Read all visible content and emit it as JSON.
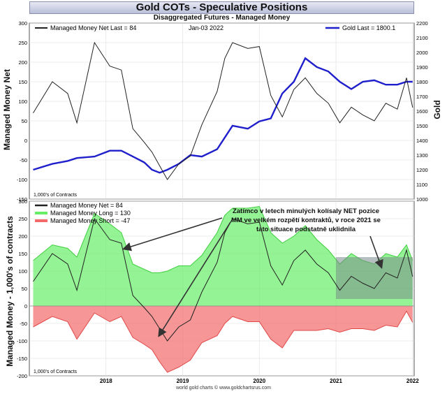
{
  "header": {
    "title": "Gold COTs - Speculative Positions",
    "subtitle": "Disaggregated Futures - Managed Money"
  },
  "top_panel": {
    "legend_left": "Managed Money Net   Last = 84",
    "date": "Jan-03  2022",
    "legend_right": "Gold Last = 1800.1",
    "ylabel_left": "Managed Money Net",
    "ylabel_right": "Gold",
    "units_note": "1,000's of Contracts"
  },
  "bottom_panel": {
    "legend": [
      {
        "label": "Managed Money Net   = 84",
        "color": "#000000"
      },
      {
        "label": "Managed Money Long  = 130",
        "color": "#44dd44"
      },
      {
        "label": "Managed Money Short = -47",
        "color": "#ee4444"
      }
    ],
    "ylabel": "Managed Money - 1,000's of contracts",
    "units_note": "1,000's of Contracts",
    "annotation": {
      "line1": "Zatímco v letech minulých kolísaly NET pozice",
      "line2": "MM ve velkém rozpětí kontraktů, v roce 2021 se",
      "line3": "tato situace podstatně uklidnila"
    }
  },
  "footer": "world gold charts © www.goldchartsrus.com",
  "colors": {
    "net": "#222222",
    "gold": "#1f1fcc",
    "long": "#66ee66",
    "short": "#f46a6a",
    "highlight": "#7a8a8a"
  },
  "chart_data": [
    {
      "type": "line",
      "title": "Gold COTs - Speculative Positions",
      "subtitle": "Disaggregated Futures - Managed Money",
      "xlabel": "",
      "ylabel": "Managed Money Net",
      "y2label": "Gold",
      "ylim": [
        -150,
        300
      ],
      "y2lim": [
        1000,
        2200
      ],
      "yticks": [
        -150,
        -100,
        -50,
        0,
        50,
        100,
        150,
        200,
        250,
        300
      ],
      "y2ticks": [
        1000,
        1100,
        1200,
        1300,
        1400,
        1500,
        1600,
        1700,
        1800,
        1900,
        2000,
        2100,
        2200
      ],
      "x": [
        2017.05,
        2017.3,
        2017.5,
        2017.62,
        2017.85,
        2018.05,
        2018.2,
        2018.35,
        2018.5,
        2018.6,
        2018.7,
        2018.8,
        2018.95,
        2019.1,
        2019.25,
        2019.45,
        2019.55,
        2019.65,
        2019.85,
        2020.0,
        2020.15,
        2020.3,
        2020.45,
        2020.6,
        2020.75,
        2020.9,
        2021.05,
        2021.2,
        2021.35,
        2021.5,
        2021.65,
        2021.8,
        2021.92,
        2022.0
      ],
      "series": [
        {
          "name": "Managed Money Net",
          "axis": "left",
          "values": [
            70,
            150,
            120,
            45,
            250,
            190,
            180,
            30,
            -5,
            -30,
            -65,
            -100,
            -60,
            -40,
            40,
            125,
            210,
            250,
            235,
            240,
            115,
            60,
            130,
            160,
            120,
            95,
            45,
            85,
            65,
            50,
            95,
            80,
            160,
            84
          ]
        },
        {
          "name": "Gold",
          "axis": "right",
          "values": [
            1200,
            1240,
            1260,
            1280,
            1290,
            1330,
            1330,
            1290,
            1250,
            1200,
            1180,
            1200,
            1240,
            1300,
            1290,
            1340,
            1420,
            1500,
            1480,
            1530,
            1550,
            1720,
            1800,
            1960,
            1900,
            1870,
            1800,
            1750,
            1800,
            1810,
            1780,
            1780,
            1800,
            1800.1
          ]
        }
      ],
      "legend": [
        "Managed Money Net Last = 84",
        "Gold Last = 1800.1"
      ]
    },
    {
      "type": "area",
      "ylabel": "Managed Money - 1,000's of contracts",
      "ylim": [
        -200,
        300
      ],
      "yticks": [
        -200,
        -150,
        -100,
        -50,
        0,
        50,
        100,
        150,
        200,
        250,
        300
      ],
      "xticks": [
        "2018",
        "2019",
        "2020",
        "2021",
        "2022"
      ],
      "x": [
        2017.05,
        2017.3,
        2017.5,
        2017.62,
        2017.85,
        2018.05,
        2018.2,
        2018.35,
        2018.5,
        2018.6,
        2018.7,
        2018.8,
        2018.95,
        2019.1,
        2019.25,
        2019.45,
        2019.55,
        2019.65,
        2019.85,
        2020.0,
        2020.15,
        2020.3,
        2020.45,
        2020.6,
        2020.75,
        2020.9,
        2021.05,
        2021.2,
        2021.35,
        2021.5,
        2021.65,
        2021.8,
        2021.92,
        2022.0
      ],
      "series": [
        {
          "name": "Managed Money Net",
          "values": [
            70,
            150,
            120,
            45,
            250,
            190,
            180,
            30,
            -5,
            -30,
            -65,
            -100,
            -60,
            -40,
            40,
            125,
            210,
            250,
            235,
            240,
            115,
            60,
            130,
            160,
            120,
            95,
            45,
            85,
            65,
            50,
            95,
            80,
            160,
            84
          ]
        },
        {
          "name": "Managed Money Long",
          "values": [
            130,
            175,
            165,
            140,
            265,
            235,
            210,
            120,
            105,
            95,
            95,
            100,
            115,
            115,
            145,
            210,
            260,
            280,
            280,
            285,
            210,
            180,
            200,
            230,
            190,
            160,
            120,
            150,
            130,
            120,
            150,
            140,
            175,
            130
          ]
        },
        {
          "name": "Managed Money Short",
          "values": [
            -60,
            -30,
            -45,
            -95,
            -20,
            -45,
            -30,
            -90,
            -110,
            -125,
            -160,
            -190,
            -175,
            -155,
            -105,
            -85,
            -50,
            -30,
            -45,
            -45,
            -95,
            -120,
            -70,
            -70,
            -70,
            -65,
            -75,
            -65,
            -65,
            -70,
            -55,
            -60,
            -15,
            -47
          ]
        }
      ],
      "legend": [
        "Managed Money Net = 84",
        "Managed Money Long = 130",
        "Managed Money Short = -47"
      ],
      "annotation": "Zatímco v letech minulých kolísaly NET pozice MM ve velkém rozpětí kontraktů, v roce 2021 se tato situace podstatně uklidnila"
    }
  ]
}
